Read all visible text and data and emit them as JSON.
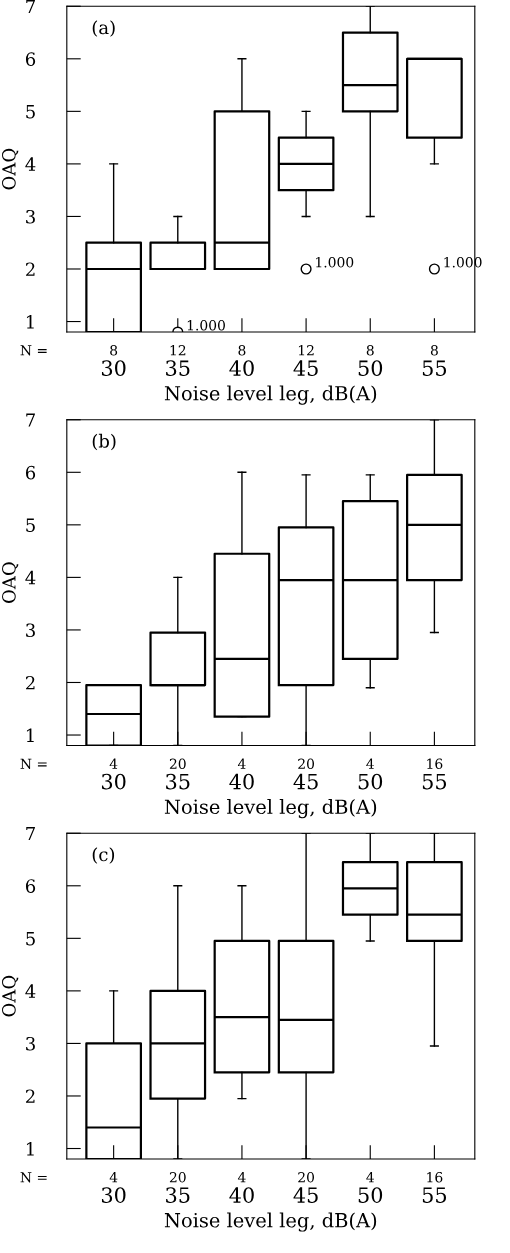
{
  "chart_data": [
    {
      "type": "box",
      "xlabel": "Noise level leg, dB(A)",
      "ylabel": "OAQ",
      "categories": [
        "30",
        "35",
        "40",
        "45",
        "50",
        "55"
      ],
      "ylim": [
        0.8,
        7
      ],
      "yticks": [
        1,
        2,
        3,
        4,
        5,
        6,
        7
      ],
      "grid": false,
      "boxes": [
        {
          "low": 0.8,
          "q1": 0.8,
          "median": 2,
          "q3": 2.5,
          "high": 4
        },
        {
          "low": 2,
          "q1": 2,
          "median": 2,
          "q3": 2.5,
          "high": 3,
          "outliers": [
            0.8
          ]
        },
        {
          "low": 2,
          "q1": 2,
          "median": 2.5,
          "q3": 5,
          "high": 6
        },
        {
          "low": 3,
          "q1": 3.5,
          "median": 4,
          "q3": 4.5,
          "high": 5,
          "outliers": [
            2
          ]
        },
        {
          "low": 3,
          "q1": 5,
          "median": 5.5,
          "q3": 6.5,
          "high": 7
        },
        {
          "low": 4,
          "q1": 4.5,
          "median": 6,
          "q3": 6,
          "high": 6,
          "outliers": [
            2
          ]
        }
      ],
      "annotations": [
        "(a)",
        "N =",
        "8",
        "12",
        "8",
        "12",
        "8",
        "8",
        "1.000",
        "1.000",
        "1.000"
      ]
    },
    {
      "type": "box",
      "xlabel": "Noise level leg, dB(A)",
      "ylabel": "OAQ",
      "categories": [
        "30",
        "35",
        "40",
        "45",
        "50",
        "55"
      ],
      "ylim": [
        0.8,
        7
      ],
      "yticks": [
        1,
        2,
        3,
        4,
        5,
        6,
        7
      ],
      "grid": false,
      "boxes": [
        {
          "low": 0.8,
          "q1": 0.8,
          "median": 1.4,
          "q3": 1.95,
          "high": 1.95
        },
        {
          "low": 0.8,
          "q1": 1.95,
          "median": 1.95,
          "q3": 2.95,
          "high": 4
        },
        {
          "low": 1.35,
          "q1": 1.35,
          "median": 2.45,
          "q3": 4.45,
          "high": 6
        },
        {
          "low": 0.8,
          "q1": 1.95,
          "median": 3.95,
          "q3": 4.95,
          "high": 5.95
        },
        {
          "low": 1.9,
          "q1": 2.45,
          "median": 3.95,
          "q3": 5.45,
          "high": 5.95
        },
        {
          "low": 2.95,
          "q1": 3.95,
          "median": 5,
          "q3": 5.95,
          "high": 7
        }
      ],
      "annotations": [
        "(b)",
        "N =",
        "4",
        "20",
        "4",
        "20",
        "4",
        "16"
      ]
    },
    {
      "type": "box",
      "xlabel": "Noise level leg, dB(A)",
      "ylabel": "OAQ",
      "categories": [
        "30",
        "35",
        "40",
        "45",
        "50",
        "55"
      ],
      "ylim": [
        0.8,
        7
      ],
      "yticks": [
        1,
        2,
        3,
        4,
        5,
        6,
        7
      ],
      "grid": false,
      "boxes": [
        {
          "low": 0.8,
          "q1": 0.8,
          "median": 1.4,
          "q3": 3,
          "high": 4
        },
        {
          "low": 0.8,
          "q1": 1.95,
          "median": 3,
          "q3": 4,
          "high": 6
        },
        {
          "low": 1.95,
          "q1": 2.45,
          "median": 3.5,
          "q3": 4.95,
          "high": 6
        },
        {
          "low": 0.8,
          "q1": 2.45,
          "median": 3.45,
          "q3": 4.95,
          "high": 7
        },
        {
          "low": 4.95,
          "q1": 5.45,
          "median": 5.95,
          "q3": 6.45,
          "high": 7
        },
        {
          "low": 2.95,
          "q1": 4.95,
          "median": 5.45,
          "q3": 6.45,
          "high": 7
        }
      ],
      "annotations": [
        "(c)",
        "N =",
        "4",
        "20",
        "4",
        "20",
        "4",
        "16"
      ]
    }
  ]
}
